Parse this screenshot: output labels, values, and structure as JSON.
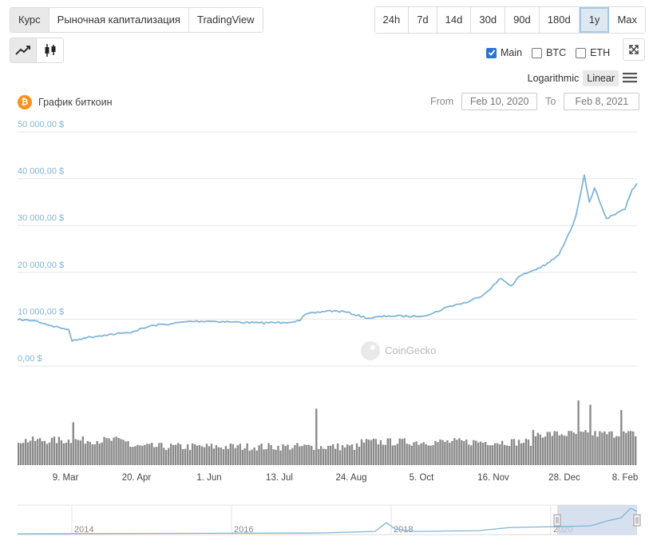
{
  "tabs": [
    "Курс",
    "Рыночная капитализация",
    "TradingView"
  ],
  "ranges": [
    "24h",
    "7d",
    "14d",
    "30d",
    "90d",
    "180d",
    "1y",
    "Max"
  ],
  "active_range": "1y",
  "series_toggles": [
    {
      "label": "Main",
      "checked": true
    },
    {
      "label": "BTC",
      "checked": false
    },
    {
      "label": "ETH",
      "checked": false
    }
  ],
  "scale": {
    "log": "Logarithmic",
    "linear": "Linear",
    "active": "Linear"
  },
  "chart_title": "График биткоин",
  "date_range": {
    "from_label": "From",
    "from": "Feb 10, 2020",
    "to_label": "To",
    "to": "Feb 8, 2021"
  },
  "watermark": "CoinGecko",
  "colors": {
    "line": "#7fb5d8",
    "volume": "#888888",
    "coin": "#f7931a",
    "navigator_fill": "#c9d5ea"
  },
  "chart_data": {
    "type": "line",
    "ylim": [
      0,
      50000
    ],
    "yticks": [
      "0,00 $",
      "10 000,00 $",
      "20 000,00 $",
      "30 000,00 $",
      "40 000,00 $",
      "50 000,00 $"
    ],
    "xticks": [
      "9. Mar",
      "20. Apr",
      "1. Jun",
      "13. Jul",
      "24. Aug",
      "5. Oct",
      "16. Nov",
      "28. Dec",
      "8. Feb"
    ],
    "series": [
      {
        "x": [
          "2020-02-10",
          "2020-02-20",
          "2020-03-01",
          "2020-03-08",
          "2020-03-11",
          "2020-03-13",
          "2020-03-20",
          "2020-04-01",
          "2020-04-15",
          "2020-04-30",
          "2020-05-10",
          "2020-05-20",
          "2020-06-01",
          "2020-06-15",
          "2020-07-01",
          "2020-07-15",
          "2020-07-25",
          "2020-07-28",
          "2020-08-10",
          "2020-08-20",
          "2020-09-03",
          "2020-09-15",
          "2020-10-01",
          "2020-10-10",
          "2020-10-21",
          "2020-11-01",
          "2020-11-10",
          "2020-11-20",
          "2020-11-26",
          "2020-12-01",
          "2020-12-16",
          "2020-12-24",
          "2020-12-31",
          "2021-01-03",
          "2021-01-08",
          "2021-01-11",
          "2021-01-14",
          "2021-01-21",
          "2021-01-26",
          "2021-02-01",
          "2021-02-05",
          "2021-02-08"
        ],
        "y": [
          9900,
          9700,
          8600,
          8000,
          7800,
          5300,
          6000,
          6600,
          7100,
          8700,
          9000,
          9500,
          9600,
          9400,
          9200,
          9300,
          9700,
          11000,
          11800,
          11600,
          10200,
          10700,
          10600,
          11100,
          12800,
          13700,
          15300,
          18700,
          17100,
          19200,
          21500,
          23700,
          29000,
          32000,
          40800,
          35000,
          38000,
          31500,
          32300,
          33500,
          37600,
          39000
        ]
      }
    ],
    "volume_peaks": [
      "2020-03-13",
      "2020-08-03",
      "2021-01-04",
      "2021-01-11",
      "2021-01-29"
    ],
    "navigator": {
      "labels": [
        "2014",
        "2016",
        "2018",
        "2020"
      ]
    }
  }
}
